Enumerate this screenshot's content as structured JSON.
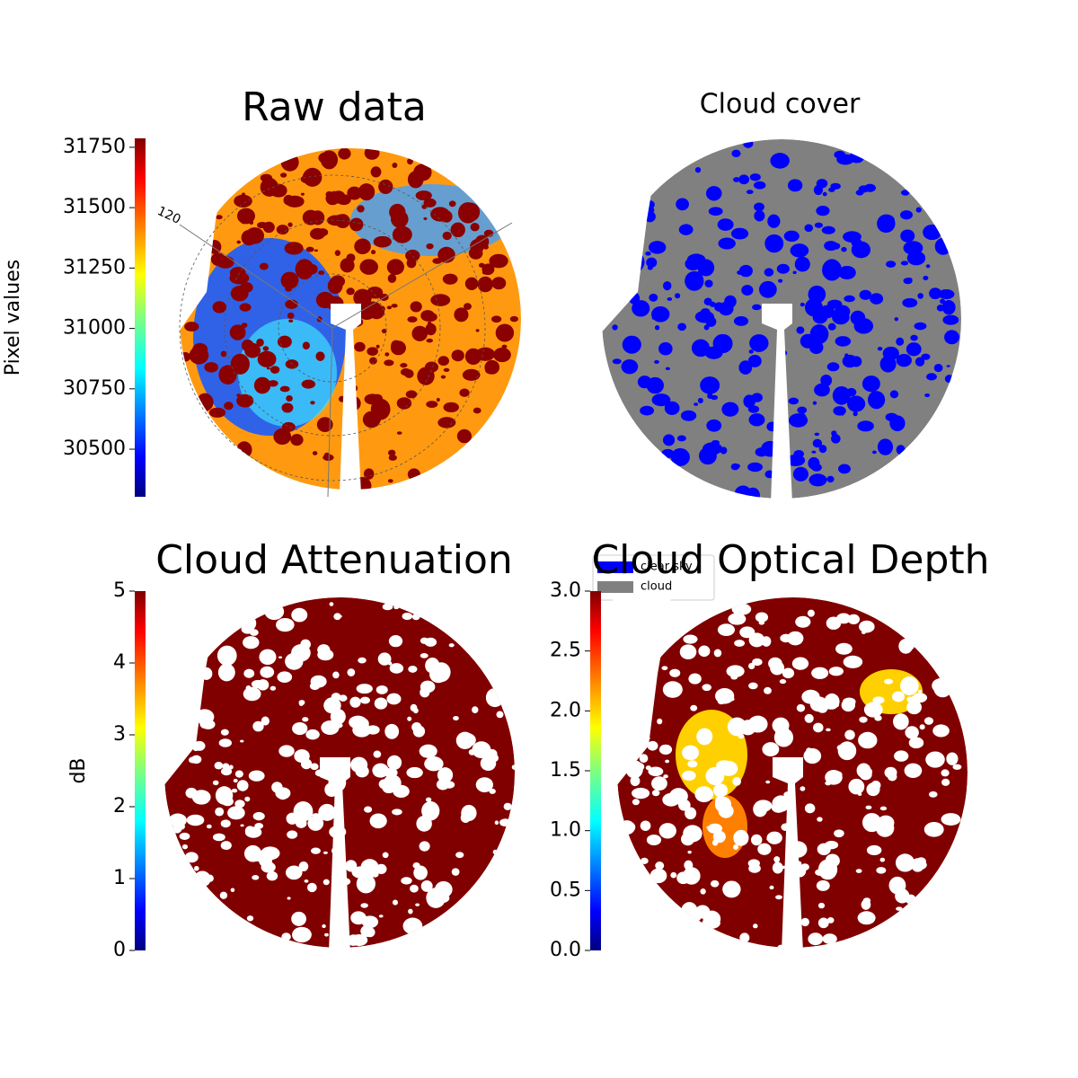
{
  "chart_data": [
    {
      "type": "image",
      "title": "Raw data",
      "polar_labels": [
        "120"
      ],
      "colorbar": {
        "label": "Pixel values",
        "lim": [
          30303,
          31787
        ],
        "ticks": [
          30500,
          30750,
          31000,
          31250,
          31500,
          31750
        ]
      }
    },
    {
      "type": "image",
      "title": "Cloud cover",
      "legend": [
        {
          "name": "clear sky",
          "color": "#0000ff"
        },
        {
          "name": "cloud",
          "color": "#808080"
        }
      ]
    },
    {
      "type": "image",
      "title": "Cloud Attenuation",
      "colorbar": {
        "label": "dB",
        "lim": [
          0,
          5
        ],
        "ticks": [
          0,
          1,
          2,
          3,
          4,
          5
        ]
      }
    },
    {
      "type": "image",
      "title": "Cloud Optical Depth",
      "colorbar": {
        "lim": [
          0,
          3
        ],
        "ticks": [
          {
            "value": 0,
            "label": "0.0"
          },
          {
            "value": 0.5,
            "label": "0.5"
          },
          {
            "value": 1,
            "label": "1.0"
          },
          {
            "value": 1.5,
            "label": "1.5"
          },
          {
            "value": 2,
            "label": "2.0"
          },
          {
            "value": 2.5,
            "label": "2.5"
          },
          {
            "value": 3,
            "label": "3.0"
          }
        ]
      }
    }
  ]
}
